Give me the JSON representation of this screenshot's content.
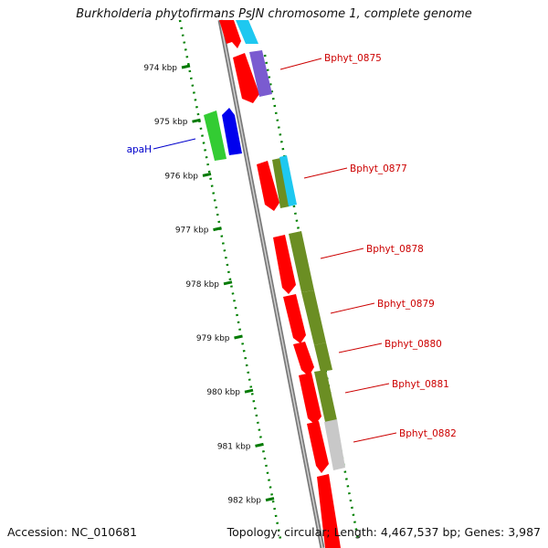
{
  "title": "Burkholderia phytofirmans PsJN chromosome 1, complete genome",
  "footer": {
    "accession": "Accession: NC_010681",
    "summary": "Topology: circular; Length: 4,467,537 bp; Genes: 3,987"
  },
  "colors": {
    "gene_red": "#ff0000",
    "gene_cyan": "#1ec8f0",
    "gene_purple": "#7a5bd0",
    "gene_green": "#33cc33",
    "gene_blue": "#0000ee",
    "gene_olive": "#6b8e23",
    "gene_gray": "#c8c8c8",
    "label_red": "#cc0000",
    "label_blue": "#0000cc",
    "tick_green": "#007a00",
    "backbone": "#8c8c8c"
  },
  "ruler_ticks": [
    "974 kbp",
    "975 kbp",
    "976 kbp",
    "977 kbp",
    "978 kbp",
    "979 kbp",
    "980 kbp",
    "981 kbp",
    "982 kbp"
  ],
  "gene_labels": [
    {
      "name": "Bphyt_0875",
      "strand": "right"
    },
    {
      "name": "apaH",
      "strand": "left"
    },
    {
      "name": "Bphyt_0877",
      "strand": "right"
    },
    {
      "name": "Bphyt_0878",
      "strand": "right"
    },
    {
      "name": "Bphyt_0879",
      "strand": "right"
    },
    {
      "name": "Bphyt_0880",
      "strand": "right"
    },
    {
      "name": "Bphyt_0881",
      "strand": "right"
    },
    {
      "name": "Bphyt_0882",
      "strand": "right"
    }
  ]
}
